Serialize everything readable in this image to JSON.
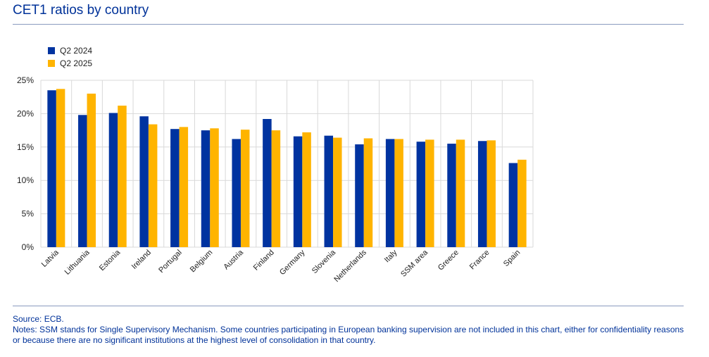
{
  "chart_data": {
    "type": "bar",
    "title": "CET1 ratios by country",
    "xlabel": "",
    "ylabel": "",
    "ylim": [
      0,
      25
    ],
    "yticks": [
      "0%",
      "5%",
      "10%",
      "15%",
      "20%",
      "25%"
    ],
    "grid": true,
    "legend_position": "top-left",
    "categories": [
      "Latvia",
      "Lithuania",
      "Estonia",
      "Ireland",
      "Portugal",
      "Belgium",
      "Austria",
      "Finland",
      "Germany",
      "Slovenia",
      "Netherlands",
      "Italy",
      "SSM area",
      "Greece",
      "France",
      "Spain"
    ],
    "series": [
      {
        "name": "Q2 2024",
        "color": "#0033a0",
        "values": [
          23.5,
          19.8,
          20.1,
          19.6,
          17.7,
          17.5,
          16.2,
          19.2,
          16.6,
          16.7,
          15.4,
          16.2,
          15.8,
          15.5,
          15.9,
          12.6
        ]
      },
      {
        "name": "Q2 2025",
        "color": "#ffb400",
        "values": [
          23.7,
          23.0,
          21.2,
          18.4,
          18.0,
          17.8,
          17.6,
          17.5,
          17.2,
          16.4,
          16.3,
          16.2,
          16.1,
          16.1,
          16.0,
          13.1
        ]
      }
    ]
  },
  "footer": {
    "source": "Source: ECB.",
    "notes": "Notes: SSM stands for Single Supervisory Mechanism. Some countries participating in European banking supervision are not included in this chart, either for confidentiality reasons or because there are no significant institutions at the highest level of consolidation in that country."
  }
}
